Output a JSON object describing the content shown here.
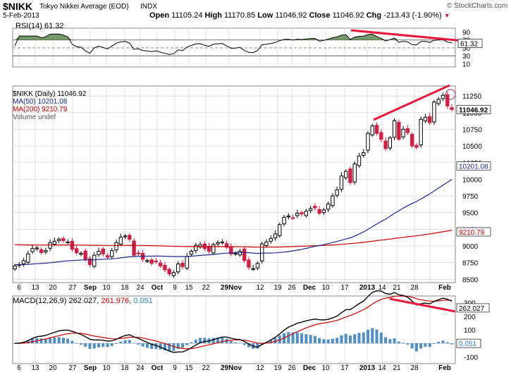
{
  "header": {
    "symbol": "$NIKK",
    "name": "Tokyo Nikkei Average (EOD)",
    "exchange": "INDX",
    "date": "5-Feb-2013",
    "watermark": "© StockCharts.com",
    "ohlc": {
      "open_label": "Open",
      "open": "11105.24",
      "high_label": "High",
      "high": "11170.85",
      "low_label": "Low",
      "low": "11046.92",
      "close_label": "Close",
      "close": "11046.92",
      "chg_label": "Chg",
      "chg": "-213.43 (-1.90%)"
    }
  },
  "colors": {
    "up": "#000000",
    "down": "#d21e45",
    "ma50": "#1c2a8c",
    "ma200": "#cc0000",
    "macd": "#000000",
    "signal": "#cc0000",
    "hist": "#4f8fc4",
    "annotation": "#e8183c",
    "rsi_fill": "#5d8a4f",
    "grid": "#d8d8d8"
  },
  "rsi": {
    "label": "RSI(14) 61.32",
    "value_tag": "61.32",
    "levels": [
      "90",
      "70",
      "50",
      "30",
      "10"
    ]
  },
  "price": {
    "legend_main": "$NIKK (Daily) 11046.92",
    "legend_ma50": "MA(50) 10201.08",
    "legend_ma200": "MA(200) 9210.79",
    "legend_volume": "Volume undef",
    "last_tag": "11046.92",
    "ma50_tag": "10201.08",
    "ma200_tag": "9210.79",
    "y_ticks": [
      "11250",
      "11000",
      "10750",
      "10500",
      "10250",
      "10000",
      "9750",
      "9500",
      "9250",
      "9000",
      "8750",
      "8500"
    ]
  },
  "macd": {
    "label_prefix": "MACD(12,26,9)",
    "macd": "262.027",
    "signal": "261.976",
    "hist": "0.051",
    "tag_macd": "262.027",
    "tag_hist": "0.051",
    "y_ticks": [
      "300",
      "200",
      "100",
      "0",
      "-100"
    ]
  },
  "x_axis": [
    "6",
    "13",
    "20",
    "27",
    "Sep",
    "10",
    "18",
    "24",
    "Oct",
    "9",
    "15",
    "22",
    "29Nov",
    "12",
    "19",
    "26",
    "Dec",
    "10",
    "17",
    "2013",
    "14",
    "21",
    "28",
    "Feb"
  ],
  "chart_data": [
    {
      "type": "candlestick",
      "title": "$NIKK Tokyo Nikkei Average (EOD) INDX",
      "x_labels": [
        "6",
        "13",
        "20",
        "27",
        "Sep",
        "10",
        "18",
        "24",
        "Oct",
        "9",
        "15",
        "22",
        "29Nov",
        "12",
        "19",
        "26",
        "Dec",
        "10",
        "17",
        "2013",
        "14",
        "21",
        "28",
        "Feb"
      ],
      "ylim": [
        8450,
        11400
      ],
      "close": [
        8700,
        8720,
        8780,
        8880,
        8960,
        8970,
        8900,
        8930,
        9050,
        9070,
        9100,
        9080,
        9060,
        8950,
        8900,
        8890,
        8800,
        8720,
        8860,
        8920,
        8880,
        8830,
        8930,
        9050,
        9130,
        9150,
        9100,
        8860,
        8880,
        8800,
        8780,
        8740,
        8770,
        8700,
        8640,
        8580,
        8600,
        8730,
        8690,
        8840,
        8920,
        9010,
        9020,
        8960,
        8920,
        9020,
        9050,
        9060,
        8980,
        8880,
        8890,
        8920,
        8780,
        8680,
        8660,
        8740,
        9030,
        9060,
        9110,
        9180,
        9320,
        9430,
        9450,
        9420,
        9490,
        9480,
        9520,
        9560,
        9570,
        9490,
        9540,
        9630,
        9750,
        9840,
        10050,
        10120,
        9950,
        10230,
        10350,
        10400,
        10690,
        10800,
        10690,
        10600,
        10460,
        10620,
        10880,
        10600,
        10750,
        10700,
        10500,
        10480,
        10900,
        10930,
        10850,
        11160,
        11200,
        11260,
        11100,
        11047
      ],
      "series": [
        {
          "name": "MA(50)",
          "last": 10201.08
        },
        {
          "name": "MA(200)",
          "last": 9210.79
        }
      ]
    },
    {
      "type": "line",
      "title": "RSI(14) 61.32",
      "ylim": [
        0,
        100
      ],
      "levels": [
        70,
        50,
        30
      ]
    },
    {
      "type": "line",
      "title": "MACD(12,26,9) 262.027, 261.976, 0.051",
      "ylim": [
        -150,
        350
      ],
      "series": [
        {
          "name": "MACD",
          "last": 262.027
        },
        {
          "name": "Signal",
          "last": 261.976
        },
        {
          "name": "Histogram",
          "last": 0.051
        }
      ]
    }
  ]
}
